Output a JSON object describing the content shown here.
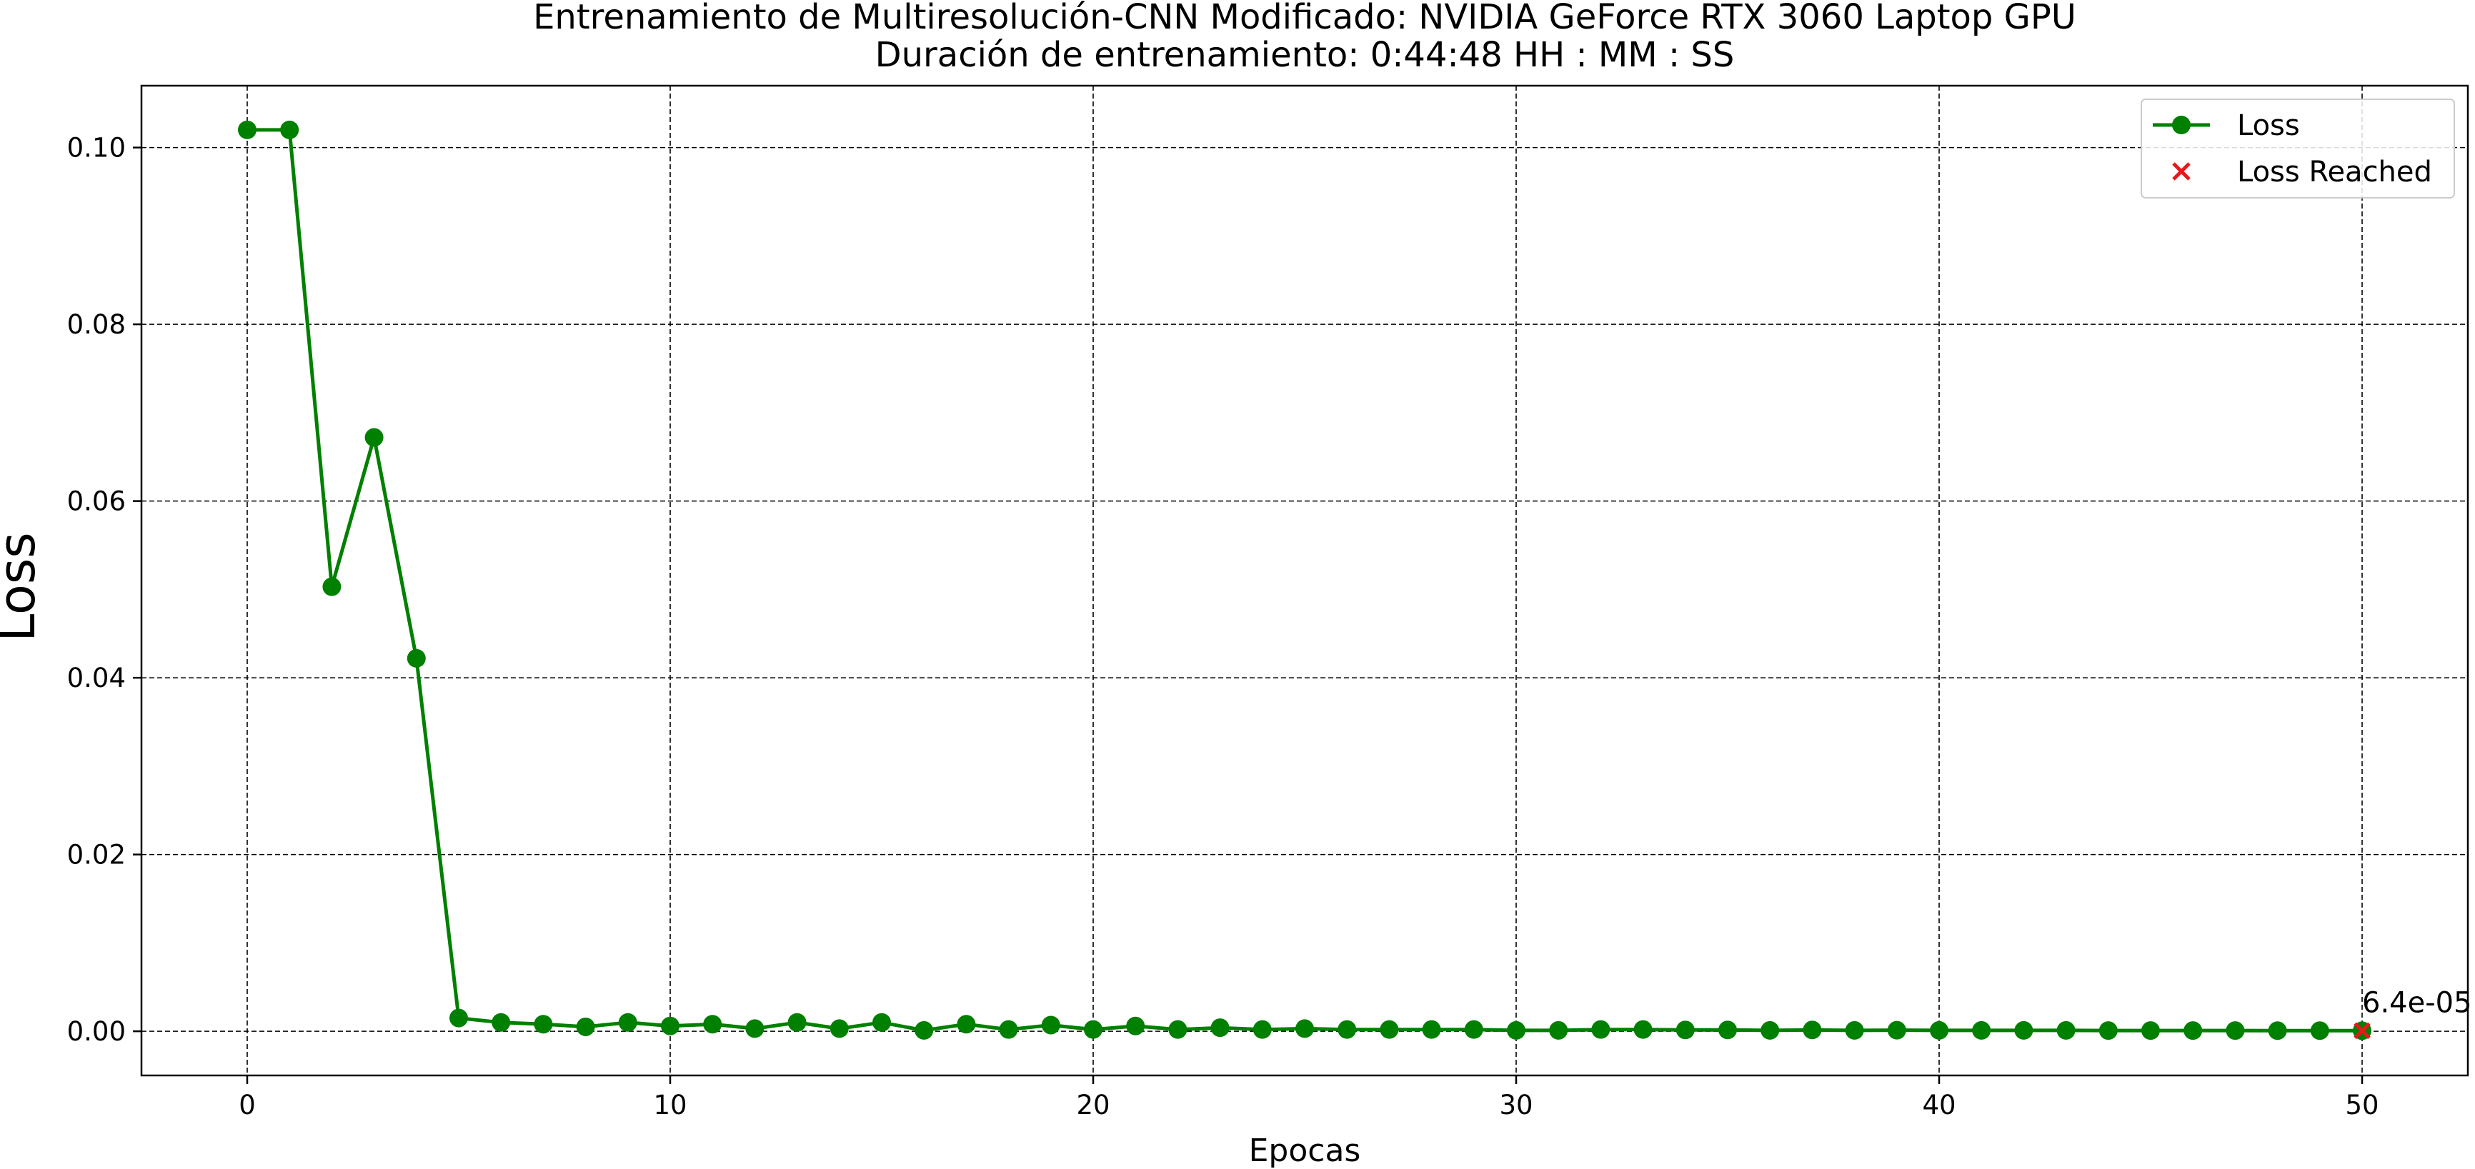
{
  "chart_data": {
    "type": "line",
    "title": "Entrenamiento de Multiresolución-CNN Modificado: NVIDIA GeForce RTX 3060 Laptop GPU",
    "subtitle": "Duración de entrenamiento: 0:44:48 HH : MM : SS",
    "xlabel": "Epocas",
    "ylabel": "Loss",
    "xlim": [
      -2.5,
      52.5
    ],
    "ylim": [
      -0.005,
      0.107
    ],
    "xticks": [
      0,
      10,
      20,
      30,
      40,
      50
    ],
    "yticks": [
      0.0,
      0.02,
      0.04,
      0.06,
      0.08,
      0.1
    ],
    "ytick_labels": [
      "0.00",
      "0.02",
      "0.04",
      "0.06",
      "0.08",
      "0.10"
    ],
    "grid": true,
    "legend_position": "top-right",
    "series": [
      {
        "name": "Loss",
        "color": "#008000",
        "marker": "circle",
        "x": [
          0,
          1,
          2,
          3,
          4,
          5,
          6,
          7,
          8,
          9,
          10,
          11,
          12,
          13,
          14,
          15,
          16,
          17,
          18,
          19,
          20,
          21,
          22,
          23,
          24,
          25,
          26,
          27,
          28,
          29,
          30,
          31,
          32,
          33,
          34,
          35,
          36,
          37,
          38,
          39,
          40,
          41,
          42,
          43,
          44,
          45,
          46,
          47,
          48,
          49,
          50
        ],
        "values": [
          0.102,
          0.102,
          0.0503,
          0.0672,
          0.0422,
          0.0015,
          0.001,
          0.0008,
          0.0005,
          0.001,
          0.0006,
          0.0008,
          0.0003,
          0.001,
          0.0003,
          0.001,
          0.0001,
          0.0008,
          0.0002,
          0.0007,
          0.0002,
          0.0006,
          0.0002,
          0.0004,
          0.0002,
          0.0003,
          0.0002,
          0.0002,
          0.0002,
          0.0002,
          0.0001,
          0.0001,
          0.0002,
          0.0002,
          0.00015,
          0.00015,
          0.0001,
          0.00015,
          0.0001,
          0.00012,
          0.0001,
          0.0001,
          0.0001,
          0.0001,
          8e-05,
          8e-05,
          8e-05,
          8e-05,
          7e-05,
          7e-05,
          6.4e-05
        ]
      },
      {
        "name": "Loss Reached",
        "color": "#e31a1c",
        "marker": "x",
        "x": [
          50
        ],
        "values": [
          6.4e-05
        ]
      }
    ],
    "annotations": [
      {
        "text": "6.4e-05",
        "x": 50,
        "y": 6.4e-05
      }
    ]
  }
}
